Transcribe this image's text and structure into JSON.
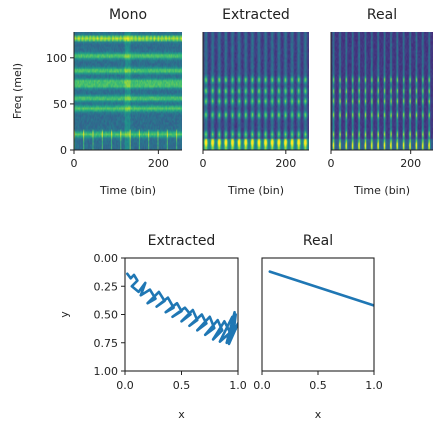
{
  "chart_data": [
    {
      "type": "heatmap",
      "title": "Mono",
      "xlabel": "Time (bin)",
      "ylabel": "Freq (mel)",
      "xlim": [
        0,
        256
      ],
      "ylim": [
        0,
        128
      ],
      "x_ticks": [
        0,
        200
      ],
      "y_ticks": [
        0,
        50,
        100
      ],
      "colormap": "viridis",
      "bright_bands_mel": [
        17,
        45,
        56,
        70,
        74,
        86,
        102,
        121
      ],
      "pattern": "continuous horizontal harmonic bands"
    },
    {
      "type": "heatmap",
      "title": "Extracted",
      "xlabel": "Time (bin)",
      "ylabel": "",
      "xlim": [
        0,
        256
      ],
      "ylim": [
        0,
        128
      ],
      "x_ticks": [
        0,
        200
      ],
      "colormap": "viridis",
      "bright_bands_mel": [
        8,
        17,
        38,
        53,
        64,
        76
      ],
      "pattern": "periodic vertical bursts (~16)"
    },
    {
      "type": "heatmap",
      "title": "Real",
      "xlabel": "Time (bin)",
      "ylabel": "",
      "xlim": [
        0,
        256
      ],
      "ylim": [
        0,
        128
      ],
      "x_ticks": [
        0,
        200
      ],
      "colormap": "viridis",
      "bright_bands_mel": [
        5,
        17,
        38,
        53,
        64,
        76
      ],
      "pattern": "periodic vertical streaks (~16)"
    },
    {
      "type": "line",
      "title": "Extracted",
      "xlabel": "x",
      "ylabel": "y",
      "xlim": [
        0.0,
        1.0
      ],
      "ylim": [
        1.0,
        0.0
      ],
      "x_ticks": [
        "0.0",
        "0.5",
        "1.0"
      ],
      "y_ticks": [
        "0.00",
        "0.25",
        "0.50",
        "0.75",
        "1.00"
      ],
      "color": "#1f77b4",
      "series": [
        {
          "x": [
            0.02,
            0.05,
            0.08,
            0.11,
            0.06,
            0.12,
            0.18,
            0.14,
            0.22,
            0.27,
            0.2,
            0.3,
            0.35,
            0.28,
            0.38,
            0.43,
            0.36,
            0.46,
            0.5,
            0.42,
            0.53,
            0.58,
            0.5,
            0.6,
            0.64,
            0.57,
            0.68,
            0.72,
            0.64,
            0.75,
            0.79,
            0.71,
            0.82,
            0.86,
            0.78,
            0.88,
            0.93,
            0.84,
            0.95,
            0.98,
            0.9,
            0.97,
            0.94,
            1.0,
            0.92,
            0.98,
            0.96
          ],
          "y": [
            0.14,
            0.18,
            0.15,
            0.2,
            0.25,
            0.3,
            0.22,
            0.33,
            0.28,
            0.36,
            0.4,
            0.3,
            0.38,
            0.43,
            0.35,
            0.44,
            0.48,
            0.4,
            0.47,
            0.52,
            0.44,
            0.5,
            0.56,
            0.46,
            0.55,
            0.6,
            0.5,
            0.58,
            0.64,
            0.52,
            0.62,
            0.68,
            0.55,
            0.64,
            0.72,
            0.56,
            0.66,
            0.74,
            0.52,
            0.63,
            0.75,
            0.48,
            0.7,
            0.58,
            0.76,
            0.5,
            0.66
          ]
        }
      ]
    },
    {
      "type": "line",
      "title": "Real",
      "xlabel": "x",
      "ylabel": "",
      "xlim": [
        0.0,
        1.0
      ],
      "ylim": [
        1.0,
        0.0
      ],
      "x_ticks": [
        "0.0",
        "0.5",
        "1.0"
      ],
      "color": "#1f77b4",
      "series": [
        {
          "x": [
            0.07,
            1.0
          ],
          "y": [
            0.12,
            0.42
          ]
        }
      ]
    }
  ]
}
